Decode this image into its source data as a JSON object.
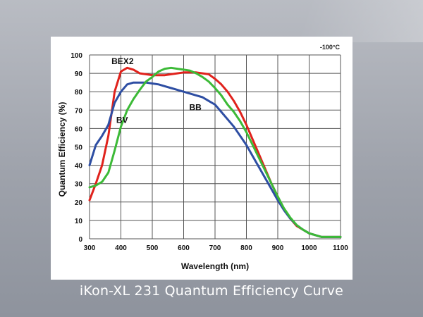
{
  "caption": "iKon-XL 231 Quantum Efficiency Curve",
  "chart_data": {
    "type": "line",
    "title": "",
    "annotation": "-100°C",
    "xlabel": "Wavelength (nm)",
    "ylabel": "Quantum Efficiency (%)",
    "xlim": [
      300,
      1100
    ],
    "ylim": [
      0,
      100
    ],
    "xticks": [
      300,
      400,
      500,
      600,
      700,
      800,
      900,
      1000,
      1100
    ],
    "yticks": [
      0,
      10,
      20,
      30,
      40,
      50,
      60,
      70,
      80,
      90,
      100
    ],
    "grid": true,
    "series": [
      {
        "name": "BEX2",
        "color": "#e0221c",
        "points": [
          [
            300,
            21
          ],
          [
            320,
            30
          ],
          [
            340,
            40
          ],
          [
            360,
            56
          ],
          [
            380,
            80
          ],
          [
            400,
            91
          ],
          [
            420,
            93
          ],
          [
            440,
            92
          ],
          [
            460,
            90
          ],
          [
            480,
            89.5
          ],
          [
            500,
            89
          ],
          [
            520,
            89
          ],
          [
            540,
            89
          ],
          [
            560,
            89.5
          ],
          [
            580,
            90
          ],
          [
            600,
            90.5
          ],
          [
            620,
            90.5
          ],
          [
            640,
            90.5
          ],
          [
            660,
            90
          ],
          [
            680,
            89.5
          ],
          [
            700,
            87
          ],
          [
            720,
            84
          ],
          [
            740,
            80
          ],
          [
            760,
            75
          ],
          [
            780,
            69
          ],
          [
            800,
            62
          ],
          [
            820,
            54
          ],
          [
            840,
            46
          ],
          [
            860,
            38
          ],
          [
            880,
            30
          ],
          [
            900,
            23
          ],
          [
            920,
            16
          ],
          [
            940,
            11
          ],
          [
            960,
            7
          ],
          [
            980,
            5
          ],
          [
            1000,
            3
          ],
          [
            1020,
            2
          ],
          [
            1040,
            1
          ],
          [
            1060,
            1
          ],
          [
            1080,
            1
          ],
          [
            1100,
            1
          ]
        ]
      },
      {
        "name": "BB",
        "color": "#2e4ea3",
        "points": [
          [
            300,
            40
          ],
          [
            320,
            51
          ],
          [
            340,
            56
          ],
          [
            360,
            62
          ],
          [
            380,
            74
          ],
          [
            400,
            80
          ],
          [
            420,
            84
          ],
          [
            440,
            85
          ],
          [
            460,
            85
          ],
          [
            480,
            85
          ],
          [
            500,
            84.5
          ],
          [
            520,
            84
          ],
          [
            540,
            83
          ],
          [
            560,
            82
          ],
          [
            580,
            81
          ],
          [
            600,
            80
          ],
          [
            620,
            79
          ],
          [
            640,
            78
          ],
          [
            660,
            77
          ],
          [
            680,
            75
          ],
          [
            700,
            73
          ],
          [
            720,
            69
          ],
          [
            740,
            65
          ],
          [
            760,
            61
          ],
          [
            780,
            56
          ],
          [
            800,
            51
          ],
          [
            820,
            45
          ],
          [
            840,
            39
          ],
          [
            860,
            33
          ],
          [
            880,
            27
          ],
          [
            900,
            21
          ],
          [
            920,
            15.5
          ],
          [
            940,
            11
          ],
          [
            960,
            7.5
          ],
          [
            980,
            5
          ],
          [
            1000,
            3
          ],
          [
            1020,
            2
          ],
          [
            1040,
            1
          ],
          [
            1060,
            1
          ],
          [
            1080,
            1
          ],
          [
            1100,
            1
          ]
        ]
      },
      {
        "name": "BV",
        "color": "#3cba37",
        "points": [
          [
            300,
            28
          ],
          [
            320,
            29
          ],
          [
            340,
            31
          ],
          [
            360,
            36
          ],
          [
            380,
            48
          ],
          [
            400,
            61
          ],
          [
            420,
            70
          ],
          [
            440,
            76
          ],
          [
            460,
            81
          ],
          [
            480,
            85.5
          ],
          [
            500,
            88
          ],
          [
            520,
            91
          ],
          [
            540,
            92.5
          ],
          [
            560,
            93
          ],
          [
            580,
            92.5
          ],
          [
            600,
            92
          ],
          [
            620,
            91.5
          ],
          [
            640,
            90
          ],
          [
            660,
            88
          ],
          [
            680,
            85.5
          ],
          [
            700,
            82
          ],
          [
            720,
            78
          ],
          [
            740,
            73
          ],
          [
            760,
            69
          ],
          [
            780,
            64
          ],
          [
            800,
            58
          ],
          [
            820,
            51
          ],
          [
            840,
            44
          ],
          [
            860,
            37
          ],
          [
            880,
            30
          ],
          [
            900,
            23
          ],
          [
            920,
            16.5
          ],
          [
            940,
            11.5
          ],
          [
            960,
            7.5
          ],
          [
            980,
            5
          ],
          [
            1000,
            3
          ],
          [
            1020,
            2
          ],
          [
            1040,
            1
          ],
          [
            1060,
            1
          ],
          [
            1080,
            1
          ],
          [
            1100,
            1
          ]
        ]
      }
    ],
    "series_labels": [
      {
        "series": "BEX2",
        "text": "BEX2",
        "x": 370,
        "y": 95
      },
      {
        "series": "BV",
        "text": "BV",
        "x": 385,
        "y": 63
      },
      {
        "series": "BB",
        "text": "BB",
        "x": 618,
        "y": 70
      }
    ]
  }
}
